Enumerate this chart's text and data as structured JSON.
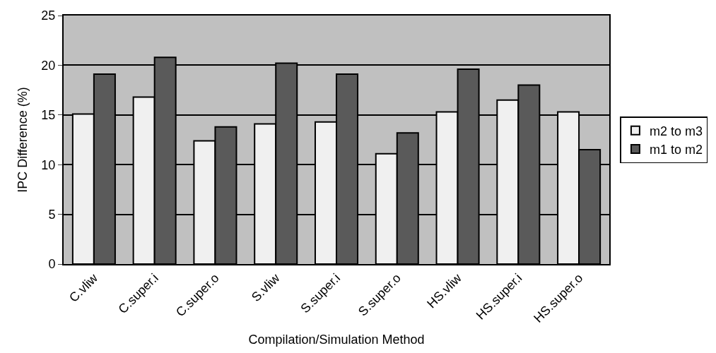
{
  "chart_data": {
    "type": "bar",
    "xlabel": "Compilation/Simulation Method",
    "ylabel": "IPC Difference (%)",
    "categories": [
      "C.vliw",
      "C.super.i",
      "C.super.o",
      "S.vliw",
      "S.super.i",
      "S.super.o",
      "HS.vliw",
      "HS.super.i",
      "HS.super.o"
    ],
    "series": [
      {
        "name": "m2 to m3",
        "color": "#f0f0f0",
        "values": [
          15.1,
          16.8,
          12.4,
          14.1,
          14.3,
          11.1,
          15.3,
          16.5,
          15.3
        ]
      },
      {
        "name": "m1 to m2",
        "color": "#5a5a5a",
        "values": [
          19.1,
          20.8,
          13.8,
          20.2,
          19.1,
          13.2,
          19.6,
          18.0,
          11.5
        ]
      }
    ],
    "ylim": [
      0,
      25
    ],
    "yticks": [
      0,
      5,
      10,
      15,
      20,
      25
    ],
    "grid": "y",
    "legend": "right"
  }
}
